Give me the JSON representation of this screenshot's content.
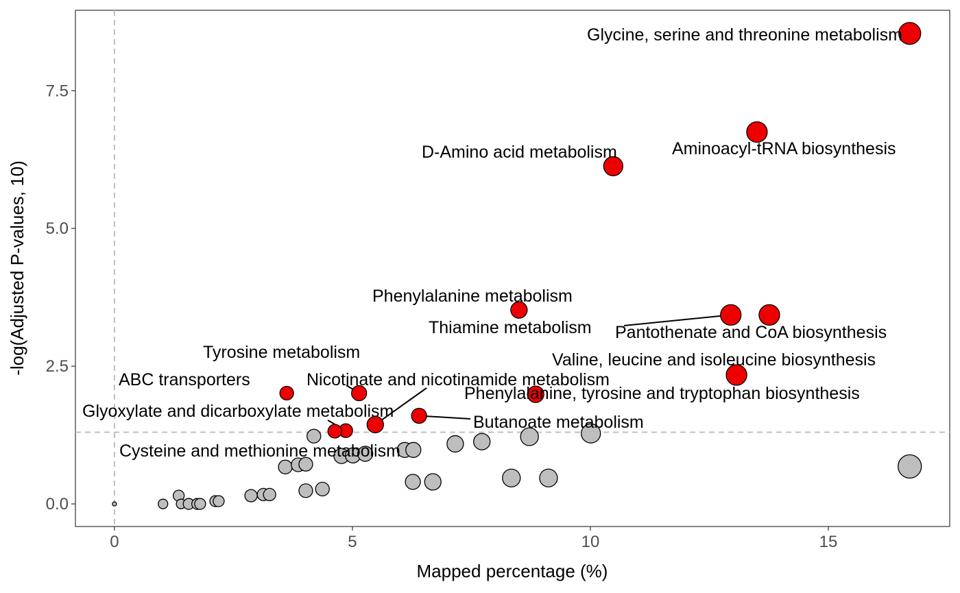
{
  "chart_data": {
    "type": "scatter",
    "xlabel": "Mapped percentage (%)",
    "ylabel": "-log(Adjusted P-values, 10)",
    "xlim": [
      -0.82,
      17.55
    ],
    "ylim": [
      -0.41,
      8.96
    ],
    "xticks": [
      0,
      5,
      10,
      15
    ],
    "xtick_labels": [
      "0",
      "5",
      "10",
      "15"
    ],
    "yticks": [
      0,
      2.5,
      5,
      7.5
    ],
    "ytick_labels": [
      "0.0",
      "2.5",
      "5.0",
      "7.5"
    ],
    "grid": false,
    "threshold_y": 1.301,
    "threshold_x": 0,
    "colors": {
      "significant": "#ee0000",
      "nonsignificant": "#bebebe",
      "threshold": "#bebebe"
    },
    "significant": [
      {
        "name": "Glycine, serine and threonine metabolism",
        "x": 16.71,
        "y": 8.54,
        "size": 16
      },
      {
        "name": "Aminoacyl-tRNA biosynthesis",
        "x": 13.5,
        "y": 6.75,
        "size": 15
      },
      {
        "name": "D-Amino acid metabolism",
        "x": 10.48,
        "y": 6.13,
        "size": 14
      },
      {
        "name": "Phenylalanine metabolism",
        "x": 8.5,
        "y": 3.52,
        "size": 12
      },
      {
        "name": "Thiamine metabolism",
        "x": 12.95,
        "y": 3.43,
        "size": 15
      },
      {
        "name": "Pantothenate and CoA biosynthesis",
        "x": 13.76,
        "y": 3.43,
        "size": 15
      },
      {
        "name": "Valine, leucine and isoleucine biosynthesis",
        "x": 13.07,
        "y": 2.34,
        "size": 15
      },
      {
        "name": "Phenylalanine, tyrosine and tryptophan biosynthesis",
        "x": 8.85,
        "y": 1.99,
        "size": 12
      },
      {
        "name": "Tyrosine metabolism",
        "x": 5.14,
        "y": 2.01,
        "size": 11
      },
      {
        "name": "ABC transporters",
        "x": 3.62,
        "y": 2.01,
        "size": 10
      },
      {
        "name": "Nicotinate and nicotinamide metabolism",
        "x": 5.48,
        "y": 1.44,
        "size": 12
      },
      {
        "name": "Butanoate metabolism",
        "x": 6.4,
        "y": 1.6,
        "size": 11
      },
      {
        "name": "Glyoxylate and dicarboxylate metabolism",
        "x": 4.86,
        "y": 1.33,
        "size": 10
      },
      {
        "name": "Cysteine and methionine metabolism",
        "x": 4.63,
        "y": 1.32,
        "size": 10
      }
    ],
    "nonsignificant": [
      {
        "x": 4.19,
        "y": 1.23,
        "size": 10
      },
      {
        "x": 3.59,
        "y": 0.67,
        "size": 10
      },
      {
        "x": 3.86,
        "y": 0.71,
        "size": 10
      },
      {
        "x": 4.02,
        "y": 0.72,
        "size": 10
      },
      {
        "x": 4.77,
        "y": 0.87,
        "size": 11
      },
      {
        "x": 5.01,
        "y": 0.88,
        "size": 11
      },
      {
        "x": 5.27,
        "y": 0.91,
        "size": 11
      },
      {
        "x": 6.1,
        "y": 0.98,
        "size": 11
      },
      {
        "x": 6.28,
        "y": 0.98,
        "size": 11
      },
      {
        "x": 7.16,
        "y": 1.09,
        "size": 12
      },
      {
        "x": 7.72,
        "y": 1.13,
        "size": 12
      },
      {
        "x": 8.72,
        "y": 1.22,
        "size": 13
      },
      {
        "x": 10.01,
        "y": 1.28,
        "size": 14
      },
      {
        "x": 16.71,
        "y": 0.68,
        "size": 17
      },
      {
        "x": 6.27,
        "y": 0.4,
        "size": 11
      },
      {
        "x": 6.69,
        "y": 0.4,
        "size": 12
      },
      {
        "x": 8.34,
        "y": 0.47,
        "size": 13
      },
      {
        "x": 9.12,
        "y": 0.47,
        "size": 13
      },
      {
        "x": 4.02,
        "y": 0.24,
        "size": 10
      },
      {
        "x": 4.37,
        "y": 0.27,
        "size": 10
      },
      {
        "x": 2.87,
        "y": 0.15,
        "size": 9
      },
      {
        "x": 3.13,
        "y": 0.17,
        "size": 9
      },
      {
        "x": 3.26,
        "y": 0.17,
        "size": 9
      },
      {
        "x": 1.35,
        "y": 0.15,
        "size": 8
      },
      {
        "x": 1.02,
        "y": 0.0,
        "size": 7
      },
      {
        "x": 1.4,
        "y": 0.0,
        "size": 7
      },
      {
        "x": 1.56,
        "y": 0.0,
        "size": 8
      },
      {
        "x": 1.74,
        "y": 0.0,
        "size": 8
      },
      {
        "x": 1.8,
        "y": 0.0,
        "size": 8
      },
      {
        "x": 2.12,
        "y": 0.05,
        "size": 8
      },
      {
        "x": 2.19,
        "y": 0.05,
        "size": 8
      },
      {
        "x": 0.0,
        "y": 0.0,
        "size": 3
      }
    ]
  }
}
